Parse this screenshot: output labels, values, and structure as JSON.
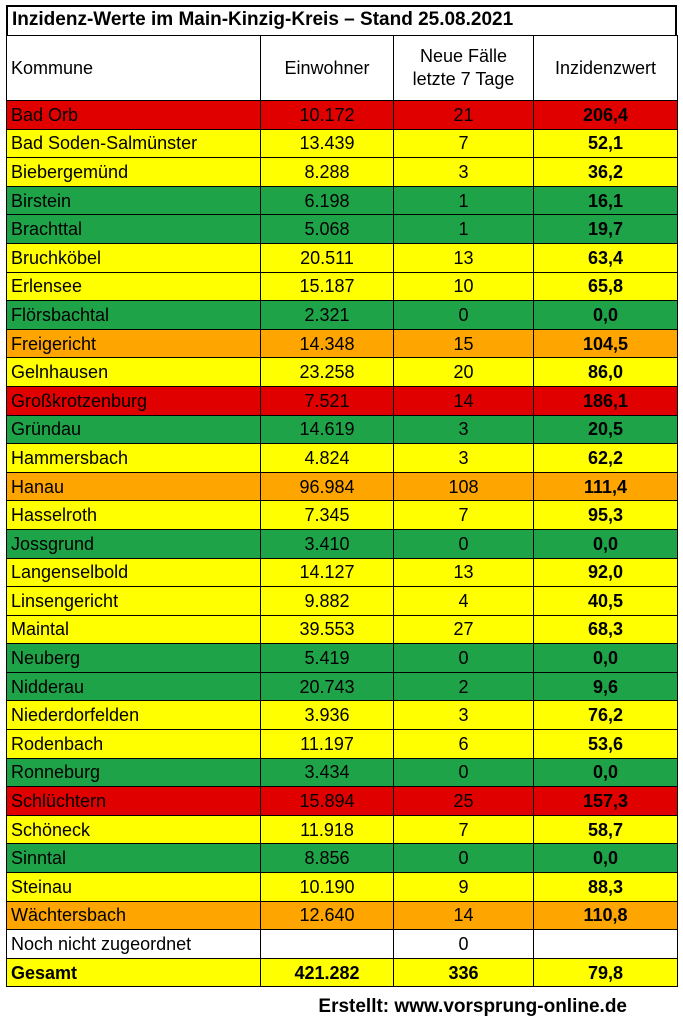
{
  "title": "Inzidenz-Werte im Main-Kinzig-Kreis – Stand 25.08.2021",
  "columns": {
    "kommune": "Kommune",
    "einwohner": "Einwohner",
    "faelle_l1": "Neue Fälle",
    "faelle_l2": "letzte 7 Tage",
    "inzidenz": "Inzidenzwert"
  },
  "colors": {
    "red": "#e00000",
    "yellow": "#ffff00",
    "green": "#1fa348",
    "orange": "#ffa500",
    "white": "#ffffff"
  },
  "rows": [
    {
      "name": "Bad Orb",
      "einwohner": "10.172",
      "faelle": "21",
      "inzidenz": "206,4",
      "color": "red"
    },
    {
      "name": "Bad Soden-Salmünster",
      "einwohner": "13.439",
      "faelle": "7",
      "inzidenz": "52,1",
      "color": "yellow"
    },
    {
      "name": "Biebergemünd",
      "einwohner": "8.288",
      "faelle": "3",
      "inzidenz": "36,2",
      "color": "yellow"
    },
    {
      "name": "Birstein",
      "einwohner": "6.198",
      "faelle": "1",
      "inzidenz": "16,1",
      "color": "green"
    },
    {
      "name": "Brachttal",
      "einwohner": "5.068",
      "faelle": "1",
      "inzidenz": "19,7",
      "color": "green"
    },
    {
      "name": "Bruchköbel",
      "einwohner": "20.511",
      "faelle": "13",
      "inzidenz": "63,4",
      "color": "yellow"
    },
    {
      "name": "Erlensee",
      "einwohner": "15.187",
      "faelle": "10",
      "inzidenz": "65,8",
      "color": "yellow"
    },
    {
      "name": "Flörsbachtal",
      "einwohner": "2.321",
      "faelle": "0",
      "inzidenz": "0,0",
      "color": "green"
    },
    {
      "name": "Freigericht",
      "einwohner": "14.348",
      "faelle": "15",
      "inzidenz": "104,5",
      "color": "orange"
    },
    {
      "name": "Gelnhausen",
      "einwohner": "23.258",
      "faelle": "20",
      "inzidenz": "86,0",
      "color": "yellow"
    },
    {
      "name": "Großkrotzenburg",
      "einwohner": "7.521",
      "faelle": "14",
      "inzidenz": "186,1",
      "color": "red"
    },
    {
      "name": "Gründau",
      "einwohner": "14.619",
      "faelle": "3",
      "inzidenz": "20,5",
      "color": "green"
    },
    {
      "name": "Hammersbach",
      "einwohner": "4.824",
      "faelle": "3",
      "inzidenz": "62,2",
      "color": "yellow"
    },
    {
      "name": "Hanau",
      "einwohner": "96.984",
      "faelle": "108",
      "inzidenz": "111,4",
      "color": "orange"
    },
    {
      "name": "Hasselroth",
      "einwohner": "7.345",
      "faelle": "7",
      "inzidenz": "95,3",
      "color": "yellow"
    },
    {
      "name": "Jossgrund",
      "einwohner": "3.410",
      "faelle": "0",
      "inzidenz": "0,0",
      "color": "green"
    },
    {
      "name": "Langenselbold",
      "einwohner": "14.127",
      "faelle": "13",
      "inzidenz": "92,0",
      "color": "yellow"
    },
    {
      "name": "Linsengericht",
      "einwohner": "9.882",
      "faelle": "4",
      "inzidenz": "40,5",
      "color": "yellow"
    },
    {
      "name": "Maintal",
      "einwohner": "39.553",
      "faelle": "27",
      "inzidenz": "68,3",
      "color": "yellow"
    },
    {
      "name": "Neuberg",
      "einwohner": "5.419",
      "faelle": "0",
      "inzidenz": "0,0",
      "color": "green"
    },
    {
      "name": "Nidderau",
      "einwohner": "20.743",
      "faelle": "2",
      "inzidenz": "9,6",
      "color": "green"
    },
    {
      "name": "Niederdorfelden",
      "einwohner": "3.936",
      "faelle": "3",
      "inzidenz": "76,2",
      "color": "yellow"
    },
    {
      "name": "Rodenbach",
      "einwohner": "11.197",
      "faelle": "6",
      "inzidenz": "53,6",
      "color": "yellow"
    },
    {
      "name": "Ronneburg",
      "einwohner": "3.434",
      "faelle": "0",
      "inzidenz": "0,0",
      "color": "green"
    },
    {
      "name": "Schlüchtern",
      "einwohner": "15.894",
      "faelle": "25",
      "inzidenz": "157,3",
      "color": "red"
    },
    {
      "name": "Schöneck",
      "einwohner": "11.918",
      "faelle": "7",
      "inzidenz": "58,7",
      "color": "yellow"
    },
    {
      "name": "Sinntal",
      "einwohner": "8.856",
      "faelle": "0",
      "inzidenz": "0,0",
      "color": "green"
    },
    {
      "name": "Steinau",
      "einwohner": "10.190",
      "faelle": "9",
      "inzidenz": "88,3",
      "color": "yellow"
    },
    {
      "name": "Wächtersbach",
      "einwohner": "12.640",
      "faelle": "14",
      "inzidenz": "110,8",
      "color": "orange"
    },
    {
      "name": "Noch nicht zugeordnet",
      "einwohner": "",
      "faelle": "0",
      "inzidenz": "",
      "color": "white"
    }
  ],
  "total": {
    "name": "Gesamt",
    "einwohner": "421.282",
    "faelle": "336",
    "inzidenz": "79,8",
    "color": "yellow"
  },
  "footer": "Erstellt: www.vorsprung-online.de"
}
